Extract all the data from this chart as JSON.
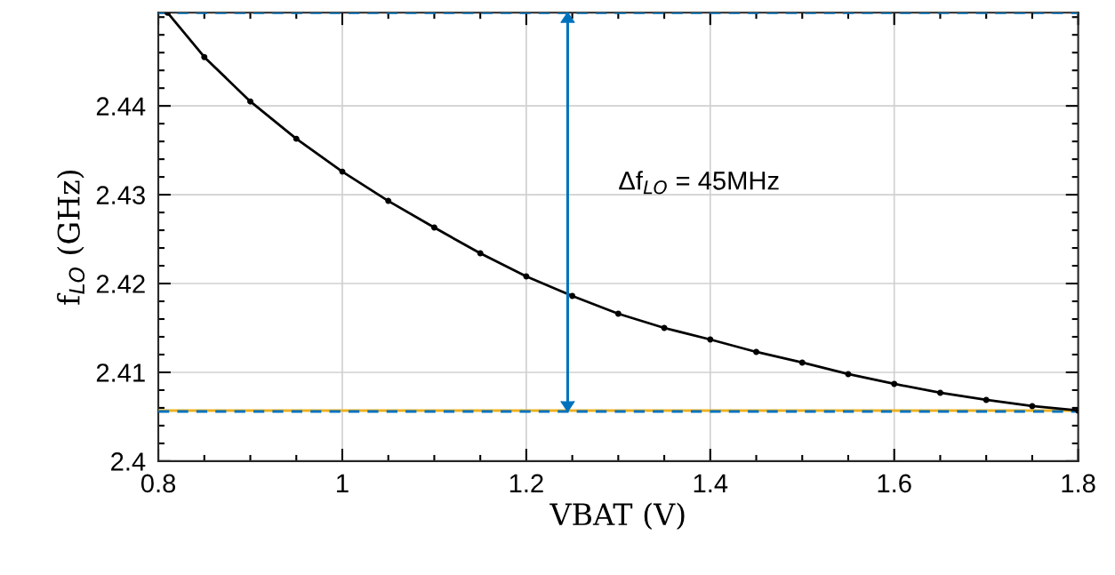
{
  "chart_data": {
    "type": "line",
    "xlabel": "VBAT (V)",
    "ylabel": "f$_{LO}$ (GHz)",
    "x": [
      0.81,
      0.85,
      0.9,
      0.95,
      1.0,
      1.05,
      1.1,
      1.15,
      1.2,
      1.25,
      1.3,
      1.35,
      1.4,
      1.45,
      1.5,
      1.55,
      1.6,
      1.65,
      1.7,
      1.75,
      1.8
    ],
    "series": [
      {
        "color": "#000000",
        "values": [
          2.4505,
          2.4455,
          2.4405,
          2.4363,
          2.4326,
          2.4293,
          2.4263,
          2.4234,
          2.4208,
          2.4186,
          2.4166,
          2.415,
          2.4137,
          2.4123,
          2.4111,
          2.4098,
          2.4087,
          2.4077,
          2.4069,
          2.4062,
          2.4057
        ]
      }
    ],
    "ref_lines": [
      {
        "axis": "y",
        "value": 2.4057,
        "color": "#edb120",
        "line_style": "solid"
      },
      {
        "axis": "y",
        "value": 2.4505,
        "color": "#0072bd",
        "line_style": "dashed"
      },
      {
        "axis": "y",
        "value": 2.4056,
        "color": "#0072bd",
        "line_style": "dashed"
      },
      {
        "axis": "x",
        "value": 1.245,
        "color": "#0072bd",
        "line_style": "solid"
      }
    ],
    "annotations": [
      "Δf$_{LO}$ = 45MHz"
    ],
    "xlim": [
      0.8,
      1.8
    ],
    "xticks": [
      0.8,
      1,
      1.2,
      1.4,
      1.6,
      1.8
    ],
    "ylim": [
      2.4,
      2.4505
    ],
    "yticks": [
      2.4,
      2.41,
      2.42,
      2.43,
      2.44
    ],
    "grid": true,
    "marker": "circle",
    "line_style": "solid"
  }
}
